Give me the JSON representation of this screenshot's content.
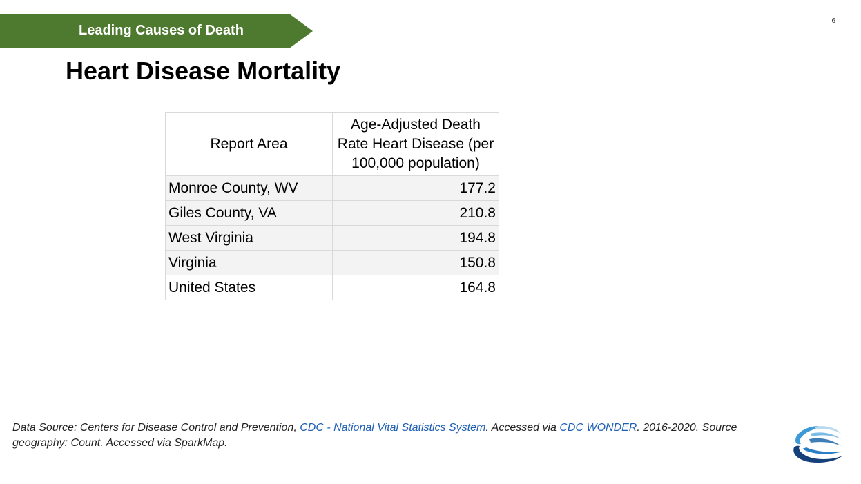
{
  "banner": {
    "text": "Leading Causes of Death",
    "color": "#4e7a2f"
  },
  "page_number": "6",
  "title": "Heart Disease Mortality",
  "table": {
    "headers": [
      "Report Area",
      "Age-Adjusted Death Rate Heart Disease (per 100,000 population)"
    ],
    "rows": [
      {
        "area": "Monroe County, WV",
        "rate": "177.2"
      },
      {
        "area": "Giles County, VA",
        "rate": "210.8"
      },
      {
        "area": "West Virginia",
        "rate": "194.8"
      },
      {
        "area": "Virginia",
        "rate": "150.8"
      },
      {
        "area": "United States",
        "rate": "164.8"
      }
    ]
  },
  "source": {
    "prefix": "Data Source: Centers for Disease Control and Prevention, ",
    "link1": "CDC - National Vital Statistics System",
    "middle": ". Accessed via ",
    "link2": "CDC WONDER",
    "suffix": ". 2016-2020. Source geography: Count. Accessed via SparkMap."
  },
  "logo": {
    "icon": "organization-logo-icon"
  }
}
